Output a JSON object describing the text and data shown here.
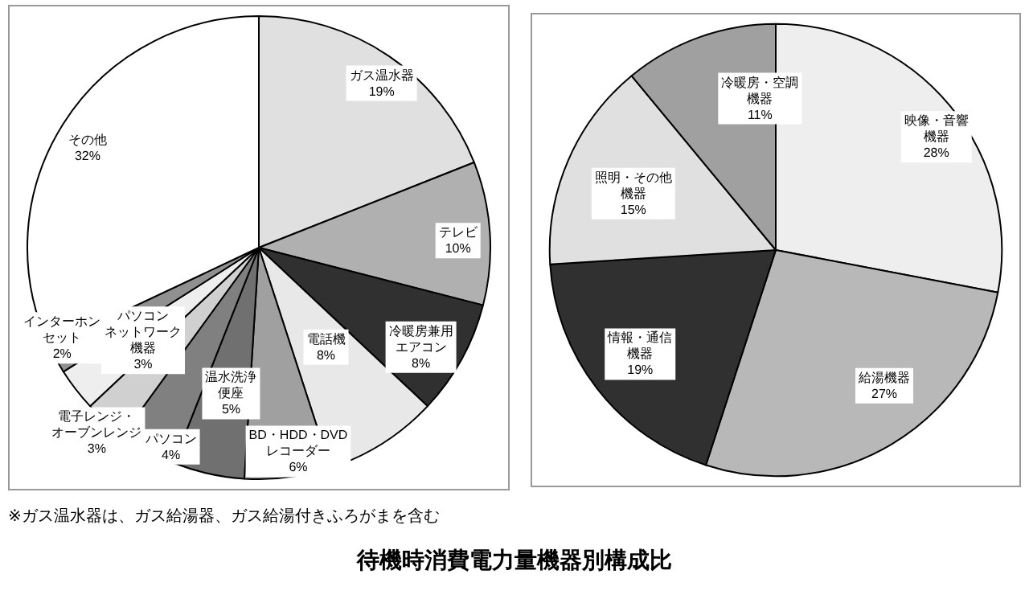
{
  "chart_data": [
    {
      "type": "pie",
      "title": "待機時消費電力量機器別構成比",
      "annotations": [
        "※ガス温水器は、ガス給湯器、ガス給湯付きふろがまを含む"
      ],
      "categories": [
        "ガス温水器",
        "テレビ",
        "冷暖房兼用エアコン",
        "電話機",
        "BD・HDD・DVDレコーダー",
        "温水洗浄便座",
        "パソコン",
        "電子レンジ・オーブンレンジ",
        "パソコンネットワーク機器",
        "インターホンセット",
        "その他"
      ],
      "values": [
        19,
        10,
        8,
        8,
        6,
        5,
        4,
        3,
        3,
        2,
        32
      ],
      "value_labels": [
        "19%",
        "10%",
        "8%",
        "8%",
        "6%",
        "5%",
        "4%",
        "3%",
        "3%",
        "2%",
        "32%"
      ],
      "colors": [
        "#e0e0e0",
        "#b0b0b0",
        "#303030",
        "#e8e8e8",
        "#a0a0a0",
        "#707070",
        "#808080",
        "#d0d0d0",
        "#eeeeee",
        "#909090",
        "#ffffff"
      ]
    },
    {
      "type": "pie",
      "categories": [
        "映像・音響機器",
        "給湯機器",
        "情報・通信機器",
        "照明・その他機器",
        "冷暖房・空調機器"
      ],
      "values": [
        28,
        27,
        19,
        15,
        11
      ],
      "value_labels": [
        "28%",
        "27%",
        "19%",
        "15%",
        "11%"
      ],
      "colors": [
        "#eeeeee",
        "#b8b8b8",
        "#303030",
        "#e0e0e0",
        "#a0a0a0"
      ]
    }
  ]
}
